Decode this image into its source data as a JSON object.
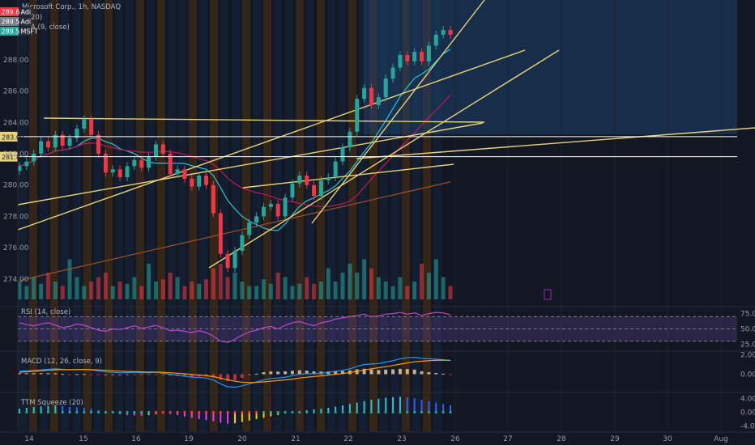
{
  "header": {
    "title": "Microsoft Corp., 1h, NASDAQ",
    "ma20_label": "20)",
    "ma9_label": "A (9, close)",
    "tags": [
      {
        "text": "289.61",
        "color": "#f23645",
        "suffix": "Adi"
      },
      {
        "text": "289.52",
        "color": "#787b86",
        "suffix": "Adi"
      },
      {
        "text": "289.52",
        "color": "#26a69a",
        "suffix": "MSFT"
      }
    ]
  },
  "colors": {
    "background": "#131722",
    "up": "#26a69a",
    "down": "#f23645",
    "trendline": "#e8d27a",
    "rsi": "#b84bc9",
    "macd": "#2196f3",
    "signal": "#ff9800",
    "ma_cyan": "#26c6da",
    "ma_magenta": "#c2185b",
    "ma_brown": "#a0522d",
    "hline": "#ffffff",
    "session_orange": "#5a3a10",
    "session_blue": "#132c4a"
  },
  "chart_data": [
    {
      "type": "candlestick",
      "title": "Microsoft Corp., 1h, NASDAQ",
      "x_ticks": [
        "14",
        "15",
        "16",
        "19",
        "20",
        "21",
        "22",
        "23",
        "26",
        "27",
        "28",
        "29",
        "30",
        "Aug"
      ],
      "y_ticks": [
        "274.00",
        "276.00",
        "278.00",
        "280.00",
        "282.00",
        "284.00",
        "286.00",
        "288.00"
      ],
      "ylim": [
        272.8,
        291.3
      ],
      "price_tags": [
        {
          "label": "283.09",
          "value": 283.09
        },
        {
          "label": "281.81",
          "value": 281.81
        }
      ],
      "ohlc_close_path": [
        281.2,
        281.5,
        282.0,
        282.8,
        282.4,
        283.2,
        282.5,
        283.0,
        283.6,
        284.2,
        283.2,
        282.0,
        280.8,
        281.0,
        280.5,
        281.2,
        281.6,
        281.1,
        281.8,
        282.6,
        282.0,
        280.7,
        281.0,
        280.4,
        279.9,
        280.6,
        280.0,
        278.2,
        275.6,
        274.7,
        275.8,
        276.8,
        277.6,
        278.0,
        278.6,
        278.8,
        278.0,
        279.2,
        280.1,
        280.6,
        280.0,
        279.3,
        280.3,
        280.5,
        281.5,
        282.4,
        283.4,
        285.5,
        286.2,
        285.1,
        285.6,
        286.8,
        287.5,
        288.3,
        287.9,
        288.5,
        287.9,
        288.9,
        289.6,
        289.9,
        289.6
      ],
      "volume_hint": "Relative volume bars beneath candles",
      "moving_averages": [
        "MA 9 (cyan)",
        "MA 20 (magenta)",
        "MA 200 (brown)"
      ],
      "hlines": [
        283.09,
        281.81
      ]
    },
    {
      "type": "line",
      "title": "RSI (14, close)",
      "y_ticks": [
        "75.00",
        "50.00",
        "25.00"
      ],
      "ylim": [
        15,
        85
      ],
      "levels": [
        70,
        50,
        30
      ],
      "values": [
        60,
        57,
        55,
        58,
        60,
        56,
        52,
        54,
        58,
        56,
        52,
        48,
        46,
        50,
        49,
        52,
        55,
        51,
        53,
        56,
        52,
        47,
        48,
        46,
        44,
        47,
        44,
        38,
        30,
        28,
        33,
        40,
        45,
        48,
        52,
        54,
        50,
        56,
        60,
        62,
        58,
        55,
        60,
        62,
        66,
        68,
        70,
        72,
        74,
        70,
        71,
        74,
        75,
        77,
        74,
        76,
        72,
        75,
        77,
        76,
        73
      ]
    },
    {
      "type": "line",
      "title": "MACD (12, 26, close, 9)",
      "y_ticks": [
        "2.00",
        "0.00"
      ],
      "ylim": [
        -1.8,
        2.3
      ],
      "macd": [
        0.3,
        0.35,
        0.4,
        0.45,
        0.5,
        0.55,
        0.5,
        0.45,
        0.48,
        0.5,
        0.45,
        0.35,
        0.25,
        0.2,
        0.15,
        0.15,
        0.2,
        0.15,
        0.15,
        0.2,
        0.1,
        0.0,
        -0.1,
        -0.2,
        -0.3,
        -0.35,
        -0.4,
        -0.6,
        -1.0,
        -1.3,
        -1.35,
        -1.2,
        -1.0,
        -0.8,
        -0.6,
        -0.45,
        -0.4,
        -0.3,
        -0.15,
        0.0,
        0.05,
        0.05,
        0.1,
        0.2,
        0.3,
        0.4,
        0.55,
        0.8,
        1.0,
        1.05,
        1.1,
        1.25,
        1.4,
        1.6,
        1.7,
        1.75,
        1.65,
        1.6,
        1.55,
        1.5,
        1.4
      ],
      "signal": [
        0.2,
        0.25,
        0.3,
        0.35,
        0.4,
        0.45,
        0.47,
        0.47,
        0.47,
        0.48,
        0.47,
        0.44,
        0.4,
        0.35,
        0.31,
        0.28,
        0.26,
        0.24,
        0.22,
        0.22,
        0.19,
        0.15,
        0.1,
        0.04,
        -0.03,
        -0.1,
        -0.16,
        -0.25,
        -0.4,
        -0.58,
        -0.73,
        -0.82,
        -0.86,
        -0.85,
        -0.8,
        -0.73,
        -0.66,
        -0.59,
        -0.5,
        -0.4,
        -0.31,
        -0.24,
        -0.17,
        -0.09,
        -0.01,
        0.07,
        0.17,
        0.3,
        0.44,
        0.56,
        0.67,
        0.78,
        0.9,
        1.04,
        1.17,
        1.28,
        1.35,
        1.4,
        1.43,
        1.45,
        1.44
      ]
    },
    {
      "type": "bar",
      "title": "TTM Squeeze (20)",
      "y_ticks": [
        "4.00",
        "0.00",
        "-4.00"
      ],
      "ylim": [
        -5.5,
        5.5
      ],
      "values": [
        1.0,
        1.3,
        1.5,
        1.7,
        1.9,
        2.0,
        1.8,
        1.5,
        1.4,
        1.3,
        1.0,
        0.6,
        0.2,
        -0.2,
        -0.6,
        -0.8,
        -0.9,
        -1.0,
        -0.8,
        -0.6,
        -0.4,
        -0.5,
        -0.8,
        -1.2,
        -1.6,
        -2.0,
        -2.3,
        -2.6,
        -3.0,
        -3.3,
        -3.2,
        -2.8,
        -2.4,
        -2.0,
        -1.6,
        -1.2,
        -0.8,
        -0.4,
        0.0,
        0.3,
        0.6,
        0.8,
        1.0,
        1.3,
        1.6,
        2.0,
        2.4,
        2.8,
        3.2,
        3.6,
        3.9,
        4.2,
        4.4,
        4.5,
        4.3,
        4.0,
        3.6,
        3.2,
        2.8,
        2.4,
        2.0
      ]
    }
  ],
  "panes": {
    "rsi_title": "RSI (14, close)",
    "macd_title": "MACD (12, 26, close, 9)",
    "ttm_title": "TTM Squeeze (20)"
  }
}
